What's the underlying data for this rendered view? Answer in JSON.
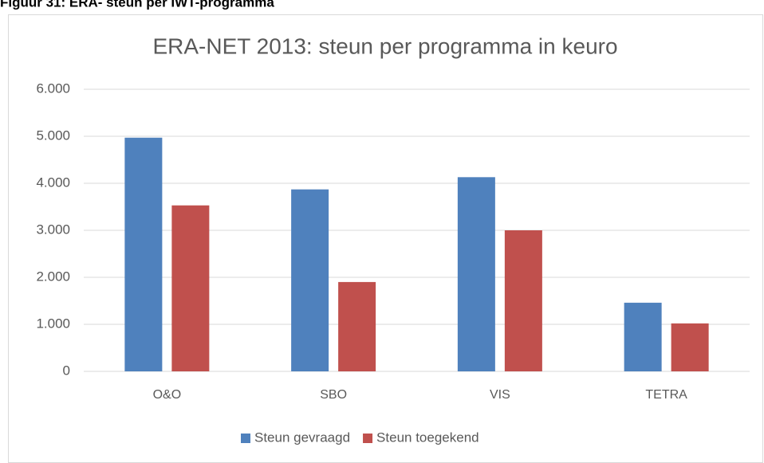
{
  "caption": "Figuur 31: ERA- steun per IWT-programma",
  "chart_data": {
    "type": "bar",
    "title": "ERA-NET 2013: steun per programma in keuro",
    "categories": [
      "O&O",
      "SBO",
      "VIS",
      "TETRA"
    ],
    "series": [
      {
        "name": "Steun gevraagd",
        "color": "#4f81bd",
        "values": [
          4970,
          3870,
          4130,
          1460
        ]
      },
      {
        "name": "Steun toegekend",
        "color": "#c0504d",
        "values": [
          3530,
          1900,
          3000,
          1020
        ]
      }
    ],
    "ylim": [
      0,
      6000
    ],
    "yticks": [
      {
        "value": 0,
        "label": "0"
      },
      {
        "value": 1000,
        "label": "1.000"
      },
      {
        "value": 2000,
        "label": "2.000"
      },
      {
        "value": 3000,
        "label": "3.000"
      },
      {
        "value": 4000,
        "label": "4.000"
      },
      {
        "value": 5000,
        "label": "5.000"
      },
      {
        "value": 6000,
        "label": "6.000"
      }
    ],
    "grid": true,
    "legend": "bottom"
  }
}
